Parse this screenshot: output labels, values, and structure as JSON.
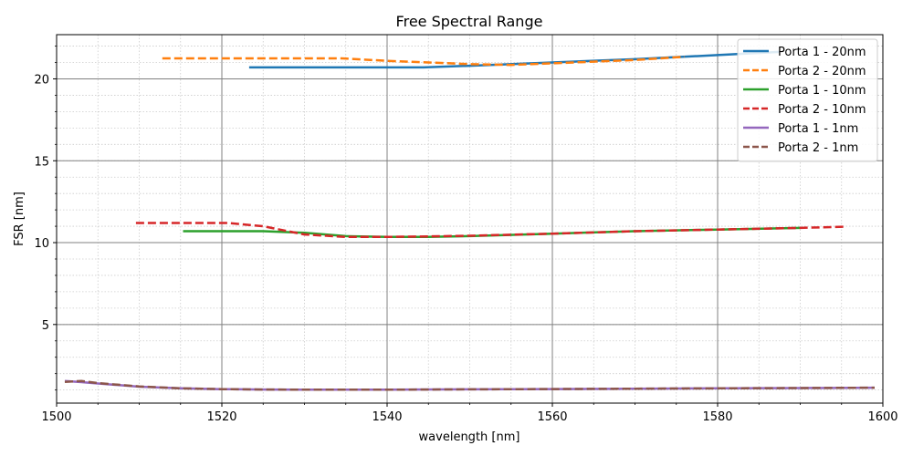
{
  "chart_data": {
    "type": "line",
    "title": "Free Spectral Range",
    "xlabel": "wavelength [nm]",
    "ylabel": "FSR [nm]",
    "xlim": [
      1500,
      1600
    ],
    "ylim": [
      0.2,
      22.7
    ],
    "xticks": [
      1500,
      1520,
      1540,
      1560,
      1580,
      1600
    ],
    "yticks": [
      5,
      10,
      15,
      20
    ],
    "grid": {
      "major": true,
      "minor": true
    },
    "legend_position": "top-right",
    "series": [
      {
        "name": "Porta 1 - 20nm",
        "color": "#1f77b4",
        "dash": "solid",
        "x": [
          1523.3,
          1530,
          1540,
          1544.4,
          1550,
          1560,
          1570,
          1580,
          1587.5
        ],
        "y": [
          20.7,
          20.7,
          20.7,
          20.7,
          20.8,
          21.0,
          21.2,
          21.45,
          21.65
        ]
      },
      {
        "name": "Porta 2 - 20nm",
        "color": "#ff7f0e",
        "dash": "dashed",
        "x": [
          1512.8,
          1520,
          1530,
          1534.5,
          1540,
          1545,
          1550,
          1555,
          1560,
          1565,
          1570,
          1576
        ],
        "y": [
          21.25,
          21.25,
          21.25,
          21.25,
          21.1,
          21.0,
          20.9,
          20.85,
          20.95,
          21.05,
          21.15,
          21.35
        ]
      },
      {
        "name": "Porta 1 - 10nm",
        "color": "#2ca02c",
        "dash": "solid",
        "x": [
          1515.3,
          1520,
          1525,
          1530,
          1535,
          1540,
          1545,
          1550,
          1560,
          1570,
          1580,
          1590
        ],
        "y": [
          10.7,
          10.7,
          10.7,
          10.6,
          10.4,
          10.35,
          10.35,
          10.4,
          10.55,
          10.7,
          10.8,
          10.9
        ]
      },
      {
        "name": "Porta 2 - 10nm",
        "color": "#d62728",
        "dash": "dashed",
        "x": [
          1509.6,
          1515,
          1520.8,
          1525,
          1530,
          1535,
          1540,
          1545,
          1550,
          1560,
          1570,
          1580,
          1590,
          1595.3
        ],
        "y": [
          11.2,
          11.2,
          11.2,
          11.0,
          10.5,
          10.35,
          10.35,
          10.38,
          10.42,
          10.55,
          10.7,
          10.8,
          10.9,
          10.97
        ]
      },
      {
        "name": "Porta 1 - 1nm",
        "color": "#9467bd",
        "dash": "solid",
        "x": [
          1501,
          1503,
          1505,
          1510,
          1515,
          1520,
          1525,
          1530,
          1540,
          1550,
          1560,
          1570,
          1580,
          1590,
          1599
        ],
        "y": [
          1.55,
          1.48,
          1.4,
          1.2,
          1.1,
          1.05,
          1.03,
          1.02,
          1.02,
          1.04,
          1.06,
          1.08,
          1.1,
          1.12,
          1.14
        ]
      },
      {
        "name": "Porta 2 - 1nm",
        "color": "#8c564b",
        "dash": "dashed",
        "x": [
          1501,
          1503,
          1505,
          1510,
          1515,
          1520,
          1525,
          1530,
          1540,
          1550,
          1560,
          1570,
          1580,
          1590,
          1599
        ],
        "y": [
          1.5,
          1.55,
          1.42,
          1.22,
          1.1,
          1.05,
          1.03,
          1.02,
          1.02,
          1.04,
          1.06,
          1.08,
          1.1,
          1.12,
          1.14
        ]
      }
    ]
  }
}
